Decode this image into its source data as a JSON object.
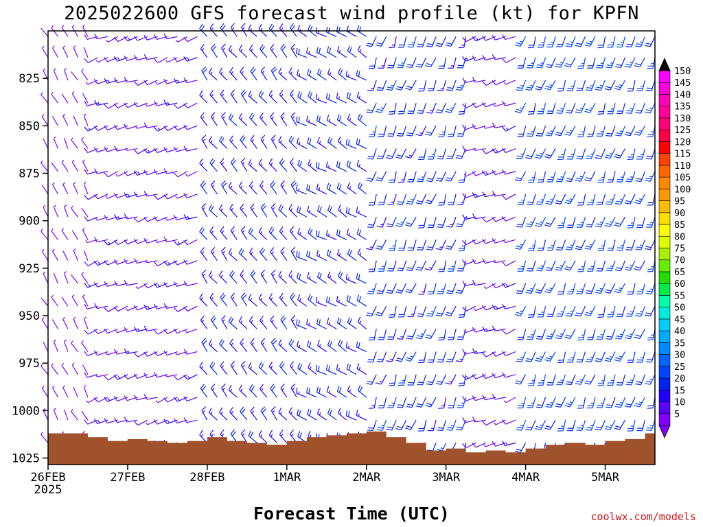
{
  "chart_data": {
    "type": "wind-barb-time-height",
    "title": "2025022600 GFS forecast wind profile (kt) for KPFN",
    "xlabel": "Forecast Time (UTC)",
    "ylabel": "",
    "y_ticks": [
      825,
      850,
      875,
      900,
      925,
      950,
      975,
      1000,
      1025
    ],
    "y_range": [
      1025,
      800
    ],
    "x_ticks": [
      {
        "label": "26FEB",
        "sub": "2025",
        "hour": 0
      },
      {
        "label": "27FEB",
        "hour": 24
      },
      {
        "label": "28FEB",
        "hour": 48
      },
      {
        "label": "1MAR",
        "hour": 72
      },
      {
        "label": "2MAR",
        "hour": 96
      },
      {
        "label": "3MAR",
        "hour": 120
      },
      {
        "label": "4MAR",
        "hour": 144
      },
      {
        "label": "5MAR",
        "hour": 168
      }
    ],
    "x_range_hours": [
      0,
      183
    ],
    "levels_hpa": [
      803,
      814,
      826,
      838,
      850,
      862,
      874,
      886,
      898,
      910,
      921,
      933,
      945,
      957,
      969,
      981,
      993,
      1005,
      1017
    ],
    "time_segments": [
      {
        "start": 0,
        "end": 12,
        "dir": 330,
        "speed": 6
      },
      {
        "start": 15,
        "end": 45,
        "dir": 250,
        "speed": 12
      },
      {
        "start": 48,
        "end": 75,
        "dir": 320,
        "speed": 18
      },
      {
        "start": 78,
        "end": 96,
        "dir": 300,
        "speed": 20
      },
      {
        "start": 99,
        "end": 126,
        "dir": 200,
        "speed": 22
      },
      {
        "start": 129,
        "end": 141,
        "dir": 250,
        "speed": 12
      },
      {
        "start": 144,
        "end": 183,
        "dir": 200,
        "speed": 25
      }
    ],
    "terrain": {
      "hours": [
        0,
        6,
        12,
        18,
        24,
        30,
        36,
        42,
        48,
        54,
        60,
        66,
        72,
        78,
        84,
        90,
        96,
        102,
        108,
        114,
        120,
        126,
        132,
        138,
        144,
        150,
        156,
        162,
        168,
        174,
        180,
        183
      ],
      "pressure": [
        1012,
        1012,
        1014,
        1016,
        1015,
        1016,
        1017,
        1016,
        1014,
        1016,
        1017,
        1018,
        1016,
        1014,
        1013,
        1012,
        1011,
        1014,
        1017,
        1021,
        1020,
        1022,
        1021,
        1022,
        1020,
        1018,
        1017,
        1018,
        1016,
        1015,
        1012,
        1013
      ],
      "color": "#a0522d"
    },
    "colorbar": {
      "values": [
        5,
        10,
        15,
        20,
        25,
        30,
        35,
        40,
        45,
        50,
        55,
        60,
        65,
        70,
        75,
        80,
        85,
        90,
        95,
        100,
        105,
        110,
        115,
        120,
        125,
        130,
        135,
        140,
        145,
        150
      ],
      "colors": [
        "#8000ff",
        "#5a00ff",
        "#2200ff",
        "#0022ee",
        "#0044ff",
        "#0066ff",
        "#0088ff",
        "#00aaff",
        "#00ccff",
        "#00eedd",
        "#00ffaa",
        "#00ee44",
        "#22dd00",
        "#66ee00",
        "#aaee00",
        "#ddff00",
        "#ffff00",
        "#ffdd00",
        "#ffbb00",
        "#ff9900",
        "#ff8800",
        "#ff6600",
        "#ff4400",
        "#ff0000",
        "#ff0044",
        "#ff0077",
        "#ff0099",
        "#ff00bb",
        "#ff00dd",
        "#ff00ff"
      ],
      "top_color": "#000000"
    }
  },
  "credit": "coolwx.com/models"
}
